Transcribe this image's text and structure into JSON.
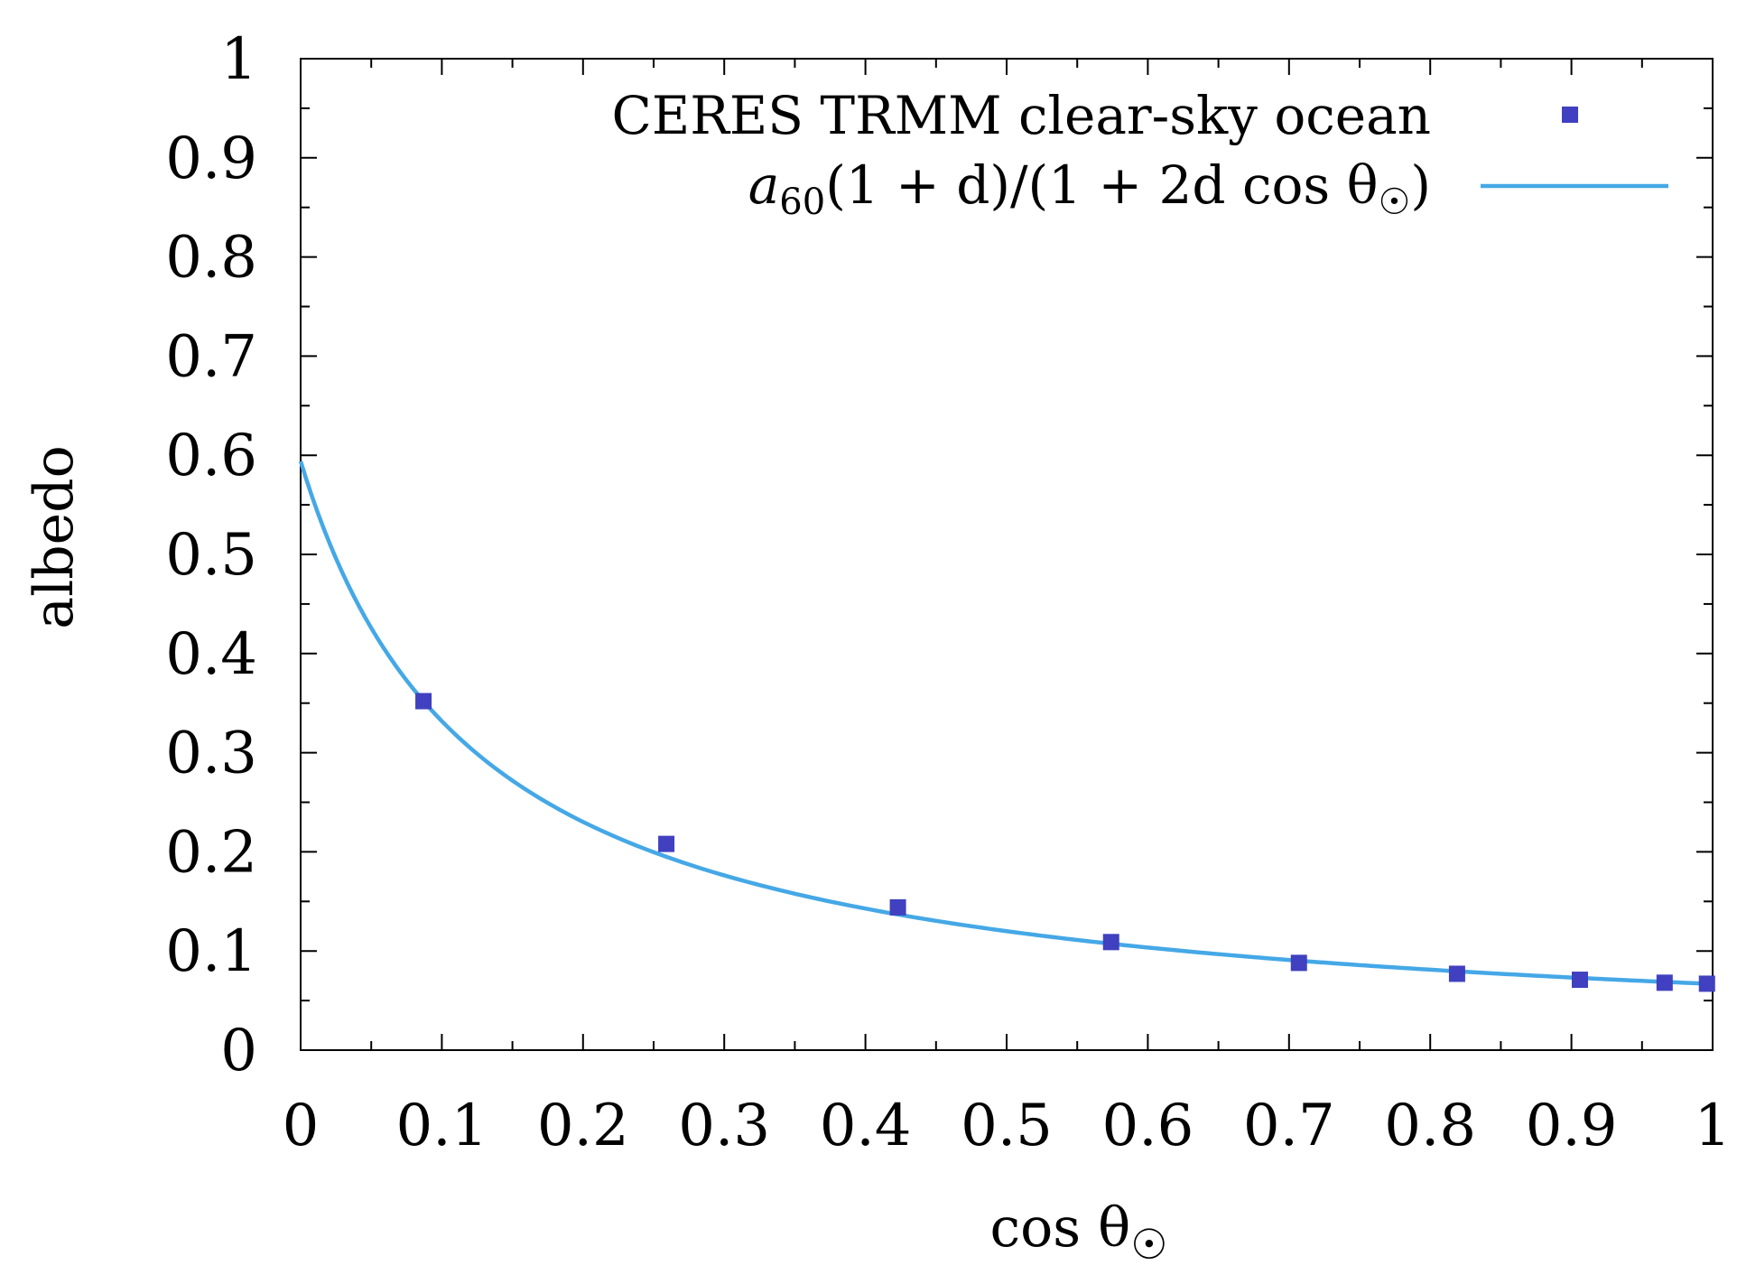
{
  "chart_data": {
    "type": "scatter",
    "title": "",
    "xlabel": "cos θ☉",
    "ylabel": "albedo",
    "xlim": [
      0,
      1
    ],
    "ylim": [
      0,
      1
    ],
    "x_ticks": [
      "0",
      "0.1",
      "0.2",
      "0.3",
      "0.4",
      "0.5",
      "0.6",
      "0.7",
      "0.8",
      "0.9",
      "1"
    ],
    "y_ticks": [
      "0",
      "0.1",
      "0.2",
      "0.3",
      "0.4",
      "0.5",
      "0.6",
      "0.7",
      "0.8",
      "0.9",
      "1"
    ],
    "grid": false,
    "legend_position": "top-right",
    "series": [
      {
        "name": "CERES TRMM clear-sky ocean",
        "kind": "points",
        "color": "#4040c0",
        "x": [
          0.087,
          0.259,
          0.423,
          0.574,
          0.707,
          0.819,
          0.906,
          0.966,
          0.996
        ],
        "y": [
          0.352,
          0.208,
          0.144,
          0.109,
          0.088,
          0.077,
          0.071,
          0.068,
          0.067
        ]
      },
      {
        "name": "a60(1 + d)/(1 + 2d cos θ☉)",
        "kind": "line",
        "color": "#45a8e6",
        "a60": 0.12,
        "d": 3.95,
        "x_range": [
          0,
          1
        ]
      }
    ],
    "legend": {
      "series_0_label": "CERES TRMM clear-sky ocean",
      "series_1_a": "a",
      "series_1_sub": "60",
      "series_1_rest": "(1 + d)/(1 + 2d cos θ",
      "series_1_sub2": "☉",
      "series_1_close": ")"
    },
    "xlabel_main": "cos θ",
    "xlabel_sub": "☉"
  }
}
